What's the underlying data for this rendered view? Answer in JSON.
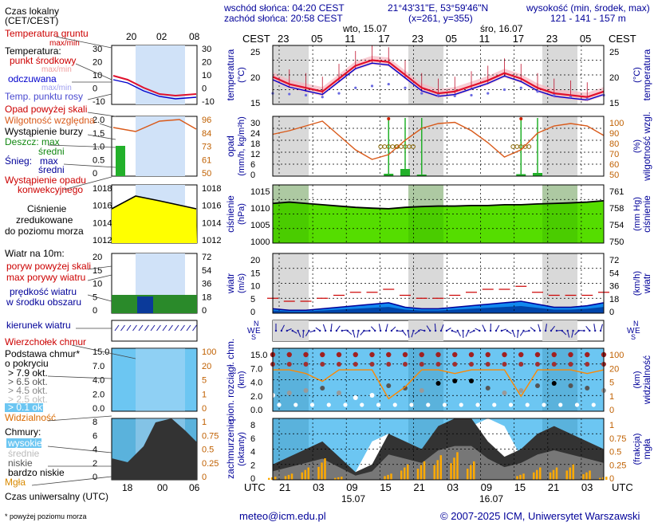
{
  "header": {
    "sunrise": "wschód słońca: 04:20 CEST",
    "sunset": "zachód słońca: 20:58 CEST",
    "coords": "21°43'31\"E, 53°59'46\"N",
    "grid": "(x=261,  y=355)",
    "altitude_title": "wysokość (min, środek, max)",
    "altitude_values": "121 - 141 - 157 m",
    "cest": "CEST",
    "utc": "UTC",
    "day1_top": "wto, 15.07",
    "day2_top": "śro, 16.07",
    "day1_bottom": "15.07",
    "day2_bottom": "16.07"
  },
  "legend": {
    "time_local": "Czas lokalny",
    "time_local2": "(CET/CEST)",
    "ground_temp": "Temperatura gruntu",
    "maxmin": "max/min",
    "temperature": "Temperatura:",
    "mid_point": "punkt środkowy",
    "maxmin2": "max/min",
    "perceived": "odczuwana",
    "maxmin3": "max/min",
    "dew_point": "Temp. punktu rosy",
    "precip_above": "Opad powyżej skali",
    "humidity": "Wilgotność względna",
    "storm": "Wystąpienie burzy",
    "rain": "Deszcz: max",
    "rain_avg": "średni",
    "snow": "Śnieg:",
    "snow_max": "max",
    "snow_avg": "średni",
    "precip_occ1": "Wystąpienie opadu",
    "precip_occ2": "konwekcyjnego",
    "pressure1": "Ciśnienie",
    "pressure2": "zredukowane",
    "pressure3": "do poziomu morza",
    "wind10": "Wiatr na 10m:",
    "gust_above": "poryw powyżej skali",
    "max_gust": "max porywy wiatru",
    "wind_speed1": "prędkość wiatru",
    "wind_speed2": "w środku obszaru",
    "wind_dir": "kierunek wiatru",
    "cloud_top": "Wierzchołek chmur",
    "cloud_base1": "Podstawa chmur*",
    "cloud_base2": "o pokryciu",
    "okt1": "> 7.9 okt.",
    "okt2": "> 6.5 okt.",
    "okt3": "> 4.5 okt.",
    "okt4": "> 2.5 okt.",
    "okt5": "> 0.1 okt.",
    "visibility": "Widzialność",
    "clouds": "Chmury:",
    "high": "wysokie",
    "mid": "średnie",
    "low": "niskie",
    "very_low": "bardzo niskie",
    "fog": "Mgła",
    "utc_time": "Czas uniwersalny (UTC)",
    "footnote": "* powyżej poziomu morza"
  },
  "mini_top_hours": [
    "20",
    "02",
    "08"
  ],
  "mini_bottom_hours": [
    "18",
    "00",
    "06"
  ],
  "top_hours": [
    "23",
    "05",
    "11",
    "17",
    "23",
    "05",
    "11",
    "17",
    "23",
    "05"
  ],
  "bottom_hours": [
    "21",
    "03",
    "09",
    "15",
    "21",
    "03",
    "09",
    "15",
    "21",
    "03"
  ],
  "panels": [
    {
      "key": "temp",
      "ylabel": "temperatura",
      "ylabel2": "(°C)",
      "rlabel": "temperatura",
      "rlabel2": "(°C)",
      "left_ticks": [
        "25",
        "20",
        "15"
      ],
      "right_ticks": [
        "25",
        "20",
        "15"
      ]
    },
    {
      "key": "precip",
      "ylabel": "opad",
      "ylabel2": "(mm/h, kg/m²h)",
      "rlabel": "wilgotność wzgl.",
      "rlabel2": "(%)",
      "left_ticks": [
        "30",
        "24",
        "18",
        "12",
        "6",
        "0"
      ],
      "right_ticks": [
        "100",
        "90",
        "80",
        "70",
        "60",
        "50"
      ]
    },
    {
      "key": "pressure",
      "ylabel": "ciśnienie",
      "ylabel2": "(hPa)",
      "rlabel": "ciśnienie",
      "rlabel2": "(mm Hg)",
      "left_ticks": [
        "1015",
        "1010",
        "1005",
        "1000"
      ],
      "right_ticks": [
        "761",
        "758",
        "754",
        "750"
      ]
    },
    {
      "key": "wind",
      "ylabel": "wiatr",
      "ylabel2": "(m/s)",
      "rlabel": "wiatr",
      "rlabel2": "(km/h)",
      "left_ticks": [
        "20",
        "15",
        "10",
        "5",
        "0"
      ],
      "right_ticks": [
        "72",
        "54",
        "36",
        "18",
        "0"
      ]
    },
    {
      "key": "clouds",
      "ylabel": "pion. rozciągł. chm.",
      "ylabel2": "(km)",
      "rlabel": "widzialność",
      "rlabel2": "(km)",
      "left_ticks": [
        "15.0",
        "7.0",
        "4.0",
        "2.0",
        "0.0"
      ],
      "right_ticks": [
        "100",
        "20",
        "5",
        "1",
        "0"
      ]
    },
    {
      "key": "cover",
      "ylabel": "zachmurzenie",
      "ylabel2": "(oktanty)",
      "rlabel": "mgła",
      "rlabel2": "(frakcja)",
      "left_ticks": [
        "8",
        "6",
        "4",
        "2",
        "0"
      ],
      "right_ticks": [
        "1",
        "0.75",
        "0.5",
        "0.25",
        "0"
      ]
    }
  ],
  "mini_panels": {
    "temp_left": [
      "30",
      "20",
      "10",
      "0",
      "-10"
    ],
    "temp_right": [
      "30",
      "20",
      "10",
      "0",
      "-10"
    ],
    "precip_left": [
      "2.0",
      "1.5",
      "1.0",
      "0.5",
      "0"
    ],
    "precip_right": [
      "96",
      "84",
      "73",
      "61",
      "50"
    ],
    "pressure_left": [
      "1018",
      "1016",
      "1014",
      "1012"
    ],
    "pressure_right": [
      "1018",
      "1016",
      "1014",
      "1012"
    ],
    "wind_left": [
      "20",
      "15",
      "10",
      "5",
      "0"
    ],
    "wind_right": [
      "72",
      "54",
      "36",
      "18",
      "0"
    ],
    "cloud_left": [
      "15.0",
      "7.0",
      "4.0",
      "2.0",
      "0.0"
    ],
    "cloud_right": [
      "100",
      "20",
      "5",
      "1",
      "0"
    ],
    "cover_left": [
      "8",
      "6",
      "4",
      "2",
      "0"
    ],
    "cover_right": [
      "1",
      "0.75",
      "0.5",
      "0.25",
      "0"
    ]
  },
  "wind_dir_letters": {
    "n": "N",
    "w": "W",
    "e": "E",
    "s": "S"
  },
  "chart_data": {
    "type": "line",
    "hours_utc": [
      18,
      21,
      0,
      3,
      6,
      9,
      12,
      15,
      18,
      21,
      0,
      3,
      6,
      9,
      12,
      15,
      18,
      21,
      0,
      3,
      6
    ],
    "temperature": [
      19.5,
      17.5,
      16.5,
      15.5,
      19.0,
      22.5,
      24.0,
      23.5,
      20.0,
      16.5,
      15.0,
      15.5,
      17.0,
      18.5,
      20.5,
      19.0,
      16.5,
      15.0,
      14.5,
      14.0,
      15.5
    ],
    "dew_point": [
      15.0,
      14.8,
      14.5,
      14.0,
      15.0,
      16.5,
      17.0,
      17.5,
      16.5,
      15.0,
      14.5,
      14.3,
      14.5,
      15.0,
      16.0,
      16.5,
      15.5,
      14.5,
      14.0,
      13.5,
      14.5
    ],
    "humidity": [
      85,
      88,
      92,
      96,
      84,
      72,
      64,
      68,
      80,
      90,
      94,
      95,
      88,
      78,
      66,
      72,
      86,
      92,
      94,
      92,
      84
    ],
    "precip_avg": [
      0,
      0,
      0,
      0,
      0,
      0,
      0,
      0.6,
      1.8,
      0.4,
      0,
      0,
      0,
      0,
      0,
      0.5,
      0.8,
      0,
      0,
      0,
      0
    ],
    "pressure": [
      1010.0,
      1010.5,
      1010.0,
      1009.5,
      1009.0,
      1008.5,
      1008.2,
      1008.0,
      1008.5,
      1008.8,
      1009.0,
      1009.0,
      1009.2,
      1009.2,
      1009.5,
      1009.5,
      1009.8,
      1010.0,
      1010.2,
      1010.5,
      1011.0
    ],
    "wind_speed": [
      1.5,
      1.0,
      1.0,
      1.5,
      2.0,
      2.5,
      3.0,
      3.5,
      2.0,
      1.5,
      1.5,
      2.0,
      2.5,
      3.0,
      3.5,
      4.0,
      3.0,
      2.0,
      2.0,
      2.5,
      3.5
    ],
    "wind_gust": [
      5,
      4,
      4,
      5,
      6,
      7,
      7,
      8,
      6,
      5,
      5,
      6,
      7,
      8,
      8,
      9,
      7,
      6,
      6,
      6,
      7
    ],
    "visibility_km": [
      20,
      20,
      15,
      8,
      20,
      20,
      20,
      1.5,
      5,
      20,
      20,
      15,
      20,
      20,
      20,
      2,
      20,
      20,
      20,
      15,
      20
    ],
    "cloud_cover_low": [
      2,
      3,
      4,
      5,
      3,
      1,
      2,
      6,
      5,
      4,
      7,
      8,
      8,
      5,
      3,
      4,
      6,
      7,
      6,
      5,
      4
    ],
    "cloud_cover_high": [
      1,
      2,
      2,
      3,
      2,
      1,
      5,
      6,
      2,
      1,
      2,
      6,
      7,
      8,
      7,
      3,
      1,
      1,
      2,
      3,
      2
    ],
    "fog": [
      0.05,
      0.1,
      0.2,
      0.35,
      0.05,
      0,
      0,
      0.1,
      0.25,
      0.3,
      0.4,
      0.45,
      0.3,
      0,
      0,
      0.1,
      0.2,
      0.2,
      0.25,
      0.15,
      0.05
    ]
  },
  "footer": {
    "email": "meteo@icm.edu.pl",
    "copyright": "© 2007-2025 ICM, Uniwersytet Warszawski"
  },
  "colors": {
    "night": "#d9d9d9",
    "day_band": "#dbe9fb",
    "temp": "#e0102c",
    "dew": "#6a6ae0",
    "humidity": "#d95a1a",
    "precip": "#22b02a",
    "pressure_fill": "#55dd00",
    "pressure_yellow": "#ffff00",
    "wind": "#0066dd",
    "sky": "#6cc6f2",
    "navy": "#000099",
    "orange": "#ff8800"
  }
}
